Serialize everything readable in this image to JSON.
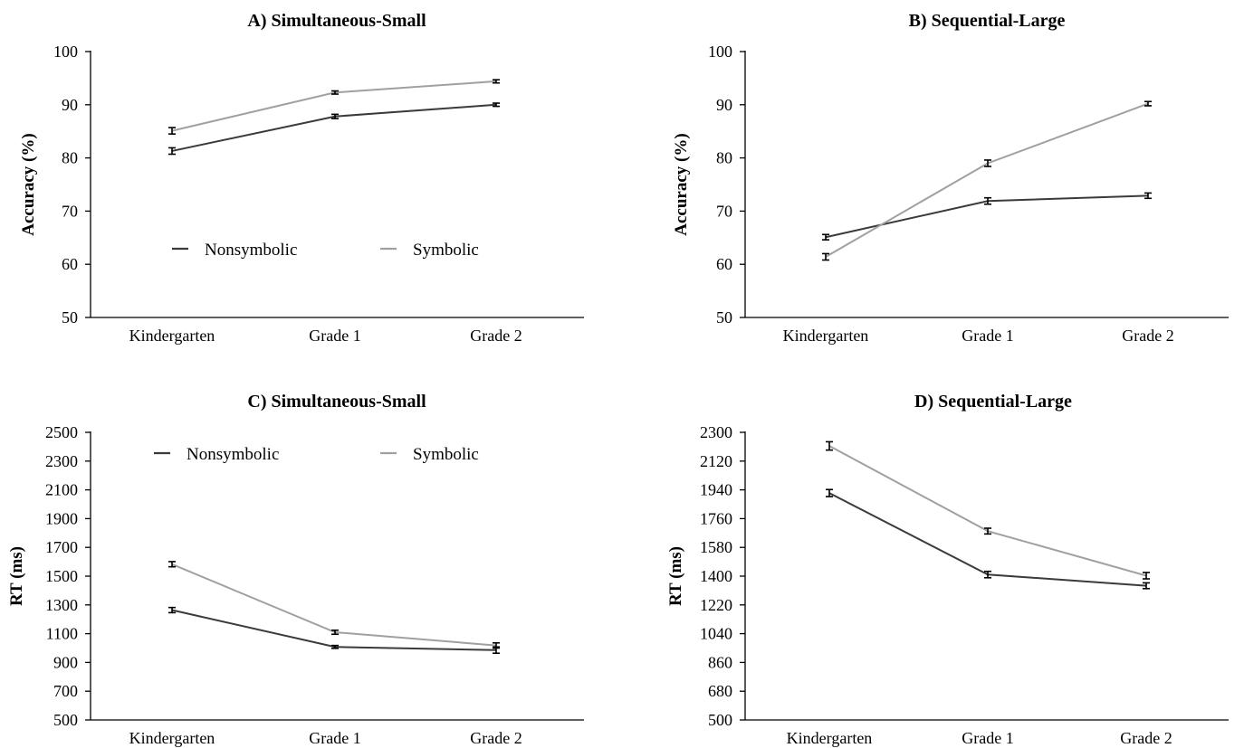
{
  "chart_data": [
    {
      "type": "line",
      "title": "A) Simultaneous-Small",
      "ylabel": "Accuracy (%)",
      "xlabel": "",
      "categories": [
        "Kindergarten",
        "Grade 1",
        "Grade 2"
      ],
      "ylim": [
        50,
        100
      ],
      "yticks": [
        50,
        60,
        70,
        80,
        90,
        100
      ],
      "grid": false,
      "legend_position": "lower-middle",
      "series": [
        {
          "name": "Nonsymbolic",
          "color": "#3a3a3a",
          "values": [
            81.3,
            87.8,
            90.0
          ],
          "errors": [
            0.6,
            0.4,
            0.3
          ]
        },
        {
          "name": "Symbolic",
          "color": "#a0a0a0",
          "values": [
            85.1,
            92.3,
            94.4
          ],
          "errors": [
            0.6,
            0.3,
            0.3
          ]
        }
      ]
    },
    {
      "type": "line",
      "title": "B) Sequential-Large",
      "ylabel": "Accuracy (%)",
      "xlabel": "",
      "categories": [
        "Kindergarten",
        "Grade 1",
        "Grade 2"
      ],
      "ylim": [
        50,
        100
      ],
      "yticks": [
        50,
        60,
        70,
        80,
        90,
        100
      ],
      "grid": false,
      "legend_position": "none",
      "series": [
        {
          "name": "Nonsymbolic",
          "color": "#3a3a3a",
          "values": [
            65.1,
            71.9,
            72.9
          ],
          "errors": [
            0.5,
            0.6,
            0.5
          ]
        },
        {
          "name": "Symbolic",
          "color": "#a0a0a0",
          "values": [
            61.4,
            79.0,
            90.2
          ],
          "errors": [
            0.6,
            0.6,
            0.4
          ]
        }
      ]
    },
    {
      "type": "line",
      "title": "C) Simultaneous-Small",
      "ylabel": "RT (ms)",
      "xlabel": "",
      "categories": [
        "Kindergarten",
        "Grade 1",
        "Grade 2"
      ],
      "ylim": [
        500,
        2500
      ],
      "yticks": [
        500,
        700,
        900,
        1100,
        1300,
        1500,
        1700,
        1900,
        2100,
        2300,
        2500
      ],
      "grid": false,
      "legend_position": "top",
      "series": [
        {
          "name": "Nonsymbolic",
          "color": "#3a3a3a",
          "values": [
            1264,
            1008,
            986
          ],
          "errors": [
            18,
            10,
            22
          ]
        },
        {
          "name": "Symbolic",
          "color": "#a0a0a0",
          "values": [
            1583,
            1110,
            1018
          ],
          "errors": [
            18,
            14,
            18
          ]
        }
      ]
    },
    {
      "type": "line",
      "title": "D) Sequential-Large",
      "ylabel": "RT (ms)",
      "xlabel": "",
      "categories": [
        "Kindergarten",
        "Grade 1",
        "Grade 2"
      ],
      "ylim": [
        500,
        2300
      ],
      "yticks": [
        500,
        680,
        860,
        1040,
        1220,
        1400,
        1580,
        1760,
        1940,
        2120,
        2300
      ],
      "grid": false,
      "legend_position": "none",
      "series": [
        {
          "name": "Nonsymbolic",
          "color": "#3a3a3a",
          "values": [
            1920,
            1410,
            1340
          ],
          "errors": [
            22,
            20,
            18
          ]
        },
        {
          "name": "Symbolic",
          "color": "#a0a0a0",
          "values": [
            2215,
            1682,
            1403
          ],
          "errors": [
            26,
            18,
            20
          ]
        }
      ]
    }
  ]
}
